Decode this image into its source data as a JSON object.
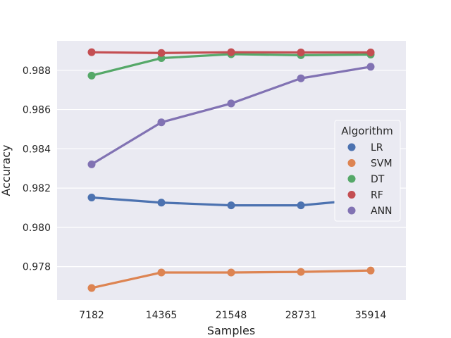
{
  "chart_data": {
    "type": "line",
    "title": "",
    "xlabel": "Samples",
    "ylabel": "Accuracy",
    "categories": [
      "7182",
      "14365",
      "21548",
      "28731",
      "35914"
    ],
    "ylim": [
      0.9763,
      0.9895
    ],
    "yticks": [
      "0.978",
      "0.980",
      "0.982",
      "0.984",
      "0.986",
      "0.988"
    ],
    "grid": true,
    "legend": {
      "title": "Algorithm",
      "placement": "right"
    },
    "series": [
      {
        "name": "LR",
        "color": "#4c72b0",
        "values": [
          0.98152,
          0.98126,
          0.98112,
          0.98112,
          0.98145
        ]
      },
      {
        "name": "SVM",
        "color": "#dd8452",
        "values": [
          0.97691,
          0.9777,
          0.9777,
          0.97773,
          0.9778
        ]
      },
      {
        "name": "DT",
        "color": "#55a868",
        "values": [
          0.98773,
          0.98862,
          0.98882,
          0.98877,
          0.9888
        ]
      },
      {
        "name": "RF",
        "color": "#c44e52",
        "values": [
          0.98892,
          0.98888,
          0.98892,
          0.98891,
          0.98891
        ]
      },
      {
        "name": "ANN",
        "color": "#8172b3",
        "values": [
          0.98321,
          0.98535,
          0.98631,
          0.98759,
          0.98818
        ]
      }
    ]
  }
}
